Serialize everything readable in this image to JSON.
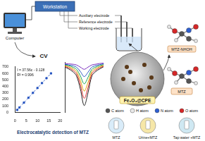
{
  "chart_data": [
    {
      "type": "scatter",
      "annotations": [
        "I = 37.56c - 0.128",
        "R² = 0.996"
      ],
      "x": [
        1,
        2,
        4,
        6,
        8,
        10,
        12,
        14,
        16
      ],
      "values": [
        37.6,
        75,
        150,
        225,
        300,
        375,
        450,
        525,
        600
      ],
      "color": "#1f4fbf",
      "marker": "square",
      "line_style": "dashed",
      "xlim": [
        0,
        20
      ],
      "xticks": [
        0,
        5,
        10,
        15,
        20
      ],
      "ylim": [
        0,
        700
      ],
      "yticks": [
        0,
        100,
        200,
        300,
        400,
        500,
        600,
        700
      ],
      "grid": false
    },
    {
      "type": "line",
      "x": [
        -1.2,
        -1.1,
        -1.0,
        -0.9,
        -0.8,
        -0.7,
        -0.6,
        -0.5,
        -0.4,
        -0.3,
        -0.2
      ],
      "series": [
        {
          "color": "#7b2fbf",
          "values": [
            -2,
            -2.5,
            -3,
            -4,
            -7,
            -10,
            -7,
            -4,
            -3,
            -2,
            -1.5
          ]
        },
        {
          "color": "#1f4fbf",
          "values": [
            -3,
            -4,
            -5,
            -7,
            -13,
            -20,
            -14,
            -7,
            -5,
            -3.5,
            -2.5
          ]
        },
        {
          "color": "#17a34a",
          "values": [
            -4,
            -5,
            -7,
            -10,
            -19,
            -30,
            -21,
            -10,
            -7,
            -5,
            -3.5
          ]
        },
        {
          "color": "#e0a100",
          "values": [
            -5,
            -6.5,
            -9,
            -13,
            -25,
            -40,
            -28,
            -13,
            -9,
            -6.5,
            -4.5
          ]
        },
        {
          "color": "#d62728",
          "values": [
            -6,
            -8,
            -11,
            -16,
            -31,
            -50,
            -35,
            -16,
            -11,
            -8,
            -5.5
          ]
        },
        {
          "color": "#222222",
          "values": [
            -7,
            -9.5,
            -13,
            -19,
            -37,
            -60,
            -42,
            -19,
            -13,
            -9.5,
            -6.5
          ]
        }
      ],
      "xlim": [
        -1.2,
        -0.2
      ],
      "ylim": [
        -70,
        0
      ],
      "grid": false,
      "tick_labels": false
    }
  ],
  "diagram": {
    "workstation": "Workstation",
    "computer": "Computer",
    "electrodes": [
      "Auxiliary electrode",
      "Reference electrode",
      "Working electrode"
    ],
    "technique": "CV",
    "electrode_material": "Fe₃O₄@CPE",
    "molecules": [
      "MTZ-NHOH",
      "MTZ"
    ],
    "atoms": [
      "C atom",
      "H atom",
      "N atom",
      "O atom"
    ],
    "samples": [
      "MTZ",
      "Urine+MTZ",
      "Tap water +MTZ"
    ],
    "caption": "Electrocatalytic detection of MTZ"
  }
}
